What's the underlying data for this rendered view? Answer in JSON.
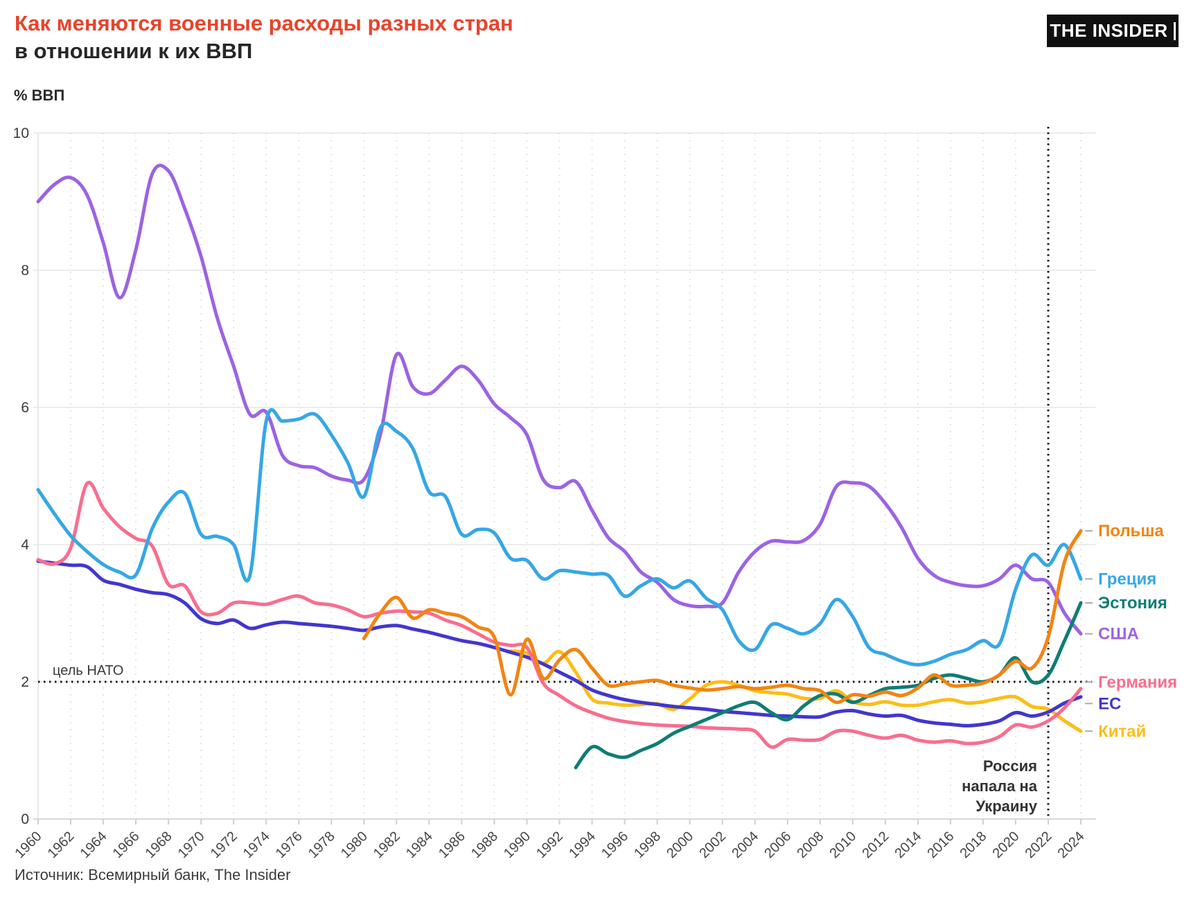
{
  "header": {
    "title_line1": "Как меняются военные расходы разных стран",
    "title_line2": "в отношении к их ВВП",
    "logo_text": "THE INSIDER"
  },
  "footer": {
    "source": "Источник: Всемирный банк, The Insider"
  },
  "chart_data": {
    "type": "line",
    "y_axis_title": "% ВВП",
    "xlim": [
      1960,
      2024
    ],
    "ylim": [
      0,
      10
    ],
    "y_ticks": [
      0,
      2,
      4,
      6,
      8,
      10
    ],
    "x_ticks": [
      1960,
      1962,
      1964,
      1966,
      1968,
      1970,
      1972,
      1974,
      1976,
      1978,
      1980,
      1982,
      1984,
      1986,
      1988,
      1990,
      1992,
      1994,
      1996,
      1998,
      2000,
      2002,
      2004,
      2006,
      2008,
      2010,
      2012,
      2014,
      2016,
      2018,
      2020,
      2022,
      2024
    ],
    "grid": true,
    "legend_position": "right",
    "nato_target": {
      "value": 2,
      "label": "цель НАТО"
    },
    "event_line": {
      "year": 2022,
      "label_lines": [
        "Россия",
        "напала на",
        "Украину"
      ]
    },
    "series": [
      {
        "name": "Польша",
        "color": "#F28412",
        "start_year": 1980,
        "values": [
          2.63,
          3.0,
          3.23,
          2.93,
          3.05,
          3.0,
          2.95,
          2.8,
          2.65,
          1.81,
          2.62,
          2.05,
          2.32,
          2.47,
          2.2,
          1.95,
          1.97,
          2.0,
          2.02,
          1.95,
          1.91,
          1.88,
          1.9,
          1.93,
          1.9,
          1.92,
          1.95,
          1.9,
          1.87,
          1.7,
          1.81,
          1.79,
          1.85,
          1.8,
          1.91,
          2.1,
          1.95,
          1.95,
          1.98,
          2.1,
          2.3,
          2.2,
          2.65,
          3.75,
          4.2
        ]
      },
      {
        "name": "Греция",
        "color": "#35A7E6",
        "start_year": 1960,
        "values": [
          4.8,
          4.45,
          4.13,
          3.9,
          3.71,
          3.6,
          3.56,
          4.23,
          4.62,
          4.75,
          4.15,
          4.12,
          4.0,
          3.55,
          5.8,
          5.8,
          5.83,
          5.9,
          5.6,
          5.2,
          4.7,
          5.7,
          5.65,
          5.4,
          4.77,
          4.7,
          4.15,
          4.22,
          4.17,
          3.8,
          3.77,
          3.5,
          3.62,
          3.6,
          3.57,
          3.55,
          3.25,
          3.4,
          3.5,
          3.37,
          3.47,
          3.22,
          3.05,
          2.6,
          2.47,
          2.83,
          2.78,
          2.7,
          2.85,
          3.2,
          2.95,
          2.5,
          2.4,
          2.3,
          2.25,
          2.3,
          2.4,
          2.47,
          2.6,
          2.55,
          3.35,
          3.85,
          3.7,
          4.0,
          3.5
        ]
      },
      {
        "name": "Эстония",
        "color": "#0F7D74",
        "start_year": 1993,
        "values": [
          0.75,
          1.05,
          0.95,
          0.9,
          1.0,
          1.1,
          1.25,
          1.35,
          1.45,
          1.55,
          1.65,
          1.7,
          1.55,
          1.45,
          1.65,
          1.8,
          1.82,
          1.7,
          1.8,
          1.9,
          1.92,
          1.95,
          2.05,
          2.1,
          2.05,
          2.0,
          2.1,
          2.35,
          2.0,
          2.1,
          2.6,
          3.15
        ]
      },
      {
        "name": "США",
        "color": "#9C63E2",
        "start_year": 1960,
        "values": [
          9.0,
          9.25,
          9.35,
          9.1,
          8.4,
          7.6,
          8.3,
          9.4,
          9.45,
          8.9,
          8.2,
          7.3,
          6.6,
          5.9,
          5.93,
          5.3,
          5.15,
          5.12,
          5.0,
          4.94,
          4.95,
          5.6,
          6.77,
          6.3,
          6.2,
          6.4,
          6.6,
          6.4,
          6.05,
          5.85,
          5.6,
          4.95,
          4.83,
          4.92,
          4.5,
          4.1,
          3.9,
          3.6,
          3.45,
          3.2,
          3.11,
          3.1,
          3.15,
          3.6,
          3.9,
          4.05,
          4.04,
          4.06,
          4.3,
          4.85,
          4.9,
          4.85,
          4.6,
          4.25,
          3.8,
          3.55,
          3.45,
          3.4,
          3.4,
          3.5,
          3.7,
          3.5,
          3.45,
          3.0,
          2.7
        ]
      },
      {
        "name": "Германия",
        "color": "#F86E8E",
        "start_year": 1960,
        "values": [
          3.78,
          3.72,
          3.95,
          4.89,
          4.53,
          4.26,
          4.09,
          3.98,
          3.42,
          3.4,
          3.02,
          3.0,
          3.15,
          3.15,
          3.13,
          3.2,
          3.25,
          3.15,
          3.12,
          3.05,
          2.95,
          3.0,
          3.03,
          3.02,
          3.0,
          2.9,
          2.82,
          2.7,
          2.58,
          2.53,
          2.5,
          1.98,
          1.8,
          1.65,
          1.55,
          1.47,
          1.42,
          1.39,
          1.37,
          1.36,
          1.35,
          1.33,
          1.32,
          1.31,
          1.28,
          1.05,
          1.16,
          1.15,
          1.16,
          1.28,
          1.28,
          1.22,
          1.18,
          1.22,
          1.15,
          1.12,
          1.14,
          1.1,
          1.12,
          1.2,
          1.37,
          1.34,
          1.43,
          1.62,
          1.9
        ]
      },
      {
        "name": "ЕС",
        "color": "#4236CF",
        "start_year": 1960,
        "values": [
          3.76,
          3.73,
          3.7,
          3.68,
          3.48,
          3.42,
          3.35,
          3.3,
          3.27,
          3.15,
          2.92,
          2.85,
          2.9,
          2.78,
          2.83,
          2.87,
          2.85,
          2.83,
          2.81,
          2.78,
          2.75,
          2.8,
          2.82,
          2.77,
          2.72,
          2.66,
          2.6,
          2.56,
          2.5,
          2.43,
          2.36,
          2.26,
          2.14,
          2.02,
          1.88,
          1.8,
          1.74,
          1.7,
          1.67,
          1.64,
          1.62,
          1.6,
          1.57,
          1.55,
          1.53,
          1.51,
          1.5,
          1.49,
          1.49,
          1.56,
          1.58,
          1.53,
          1.5,
          1.51,
          1.44,
          1.4,
          1.38,
          1.36,
          1.38,
          1.43,
          1.55,
          1.5,
          1.56,
          1.69,
          1.78
        ]
      },
      {
        "name": "Китай",
        "color": "#FCBD17",
        "start_year": 1989,
        "values": [
          2.45,
          2.42,
          2.27,
          2.44,
          2.14,
          1.75,
          1.69,
          1.66,
          1.67,
          1.68,
          1.6,
          1.75,
          1.95,
          2.0,
          1.95,
          1.87,
          1.84,
          1.82,
          1.76,
          1.76,
          1.87,
          1.71,
          1.67,
          1.71,
          1.66,
          1.66,
          1.71,
          1.74,
          1.69,
          1.71,
          1.76,
          1.78,
          1.64,
          1.6,
          1.43,
          1.28
        ]
      }
    ]
  }
}
